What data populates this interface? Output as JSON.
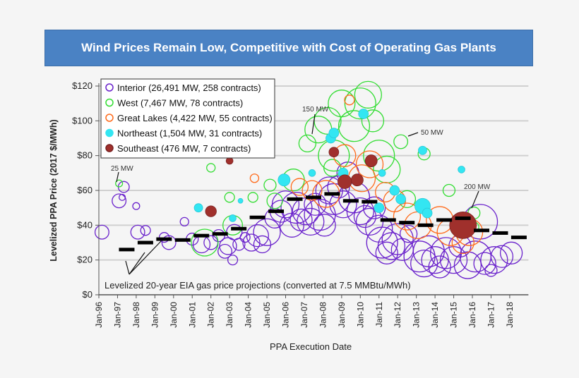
{
  "chart_data": {
    "type": "scatter",
    "title": "Wind Prices Remain Low, Competitive with Cost of Operating Gas Plants",
    "xlabel": "PPA Execution Date",
    "ylabel": "Levelized PPA Price (2017 $/MWh)",
    "ylim": [
      0,
      120
    ],
    "xlim": [
      "1996-01",
      "2019-01"
    ],
    "grid": true,
    "legend_placement": "top-left",
    "yticks": [
      "$0",
      "$20",
      "$40",
      "$60",
      "$80",
      "$100",
      "$120"
    ],
    "xticks": [
      "Jan-96",
      "Jan-97",
      "Jan-98",
      "Jan-99",
      "Jan-00",
      "Jan-01",
      "Jan-02",
      "Jan-03",
      "Jan-04",
      "Jan-05",
      "Jan-06",
      "Jan-07",
      "Jan-08",
      "Jan-09",
      "Jan-10",
      "Jan-11",
      "Jan-12",
      "Jan-13",
      "Jan-14",
      "Jan-15",
      "Jan-16",
      "Jan-17",
      "Jan-18"
    ],
    "bubble_size": "MW",
    "series": [
      {
        "name": "Interior (26,491 MW, 258 contracts)",
        "color": "#6a22cc",
        "filled": false,
        "points": [
          [
            "1996-03",
            36,
            40
          ],
          [
            "1997-02",
            54,
            40
          ],
          [
            "1997-05",
            62,
            25
          ],
          [
            "1997-04",
            56,
            8
          ],
          [
            "1998-01",
            51,
            10
          ],
          [
            "1998-02",
            36,
            40
          ],
          [
            "1998-07",
            37,
            20
          ],
          [
            "1999-07",
            33,
            20
          ],
          [
            "1999-10",
            30,
            40
          ],
          [
            "2000-08",
            42,
            15
          ],
          [
            "2001-01",
            32,
            30
          ],
          [
            "2001-07",
            29,
            60
          ],
          [
            "2002-01",
            30,
            40
          ],
          [
            "2002-06",
            34,
            30
          ],
          [
            "2002-10",
            25,
            40
          ],
          [
            "2002-12",
            28,
            60
          ],
          [
            "2003-03",
            20,
            20
          ],
          [
            "2003-04",
            36,
            50
          ],
          [
            "2003-07",
            29,
            30
          ],
          [
            "2003-11",
            33,
            20
          ],
          [
            "2004-03",
            30,
            60
          ],
          [
            "2004-07",
            34,
            100
          ],
          [
            "2004-10",
            29,
            60
          ],
          [
            "2005-01",
            36,
            150
          ],
          [
            "2005-06",
            44,
            80
          ],
          [
            "2005-10",
            48,
            100
          ],
          [
            "2006-01",
            52,
            150
          ],
          [
            "2006-05",
            40,
            120
          ],
          [
            "2006-08",
            50,
            200
          ],
          [
            "2006-11",
            43,
            100
          ],
          [
            "2007-02",
            48,
            150
          ],
          [
            "2007-05",
            42,
            150
          ],
          [
            "2007-08",
            52,
            100
          ],
          [
            "2007-11",
            46,
            200
          ],
          [
            "2008-02",
            40,
            100
          ],
          [
            "2008-05",
            60,
            150
          ],
          [
            "2008-08",
            55,
            200
          ],
          [
            "2008-11",
            62,
            100
          ],
          [
            "2009-02",
            52,
            150
          ],
          [
            "2009-05",
            70,
            100
          ],
          [
            "2009-09",
            56,
            200
          ],
          [
            "2010-01",
            48,
            150
          ],
          [
            "2010-04",
            45,
            100
          ],
          [
            "2010-07",
            42,
            150
          ],
          [
            "2010-10",
            50,
            100
          ],
          [
            "2011-01",
            38,
            150
          ],
          [
            "2011-03",
            30,
            200
          ],
          [
            "2011-06",
            24,
            100
          ],
          [
            "2011-09",
            28,
            150
          ],
          [
            "2012-01",
            32,
            200
          ],
          [
            "2012-04",
            26,
            100
          ],
          [
            "2012-08",
            35,
            60
          ],
          [
            "2013-03",
            22,
            200
          ],
          [
            "2013-06",
            18,
            150
          ],
          [
            "2013-09",
            25,
            200
          ],
          [
            "2014-01",
            20,
            150
          ],
          [
            "2014-04",
            16,
            100
          ],
          [
            "2014-08",
            24,
            200
          ],
          [
            "2015-01",
            20,
            150
          ],
          [
            "2015-05",
            28,
            100
          ],
          [
            "2015-10",
            17,
            150
          ],
          [
            "2016-03",
            22,
            200
          ],
          [
            "2016-06",
            42,
            250
          ],
          [
            "2016-09",
            18,
            100
          ],
          [
            "2017-01",
            14,
            30
          ],
          [
            "2017-03",
            20,
            150
          ],
          [
            "2017-08",
            22,
            100
          ],
          [
            "2018-02",
            24,
            100
          ]
        ]
      },
      {
        "name": "West (7,467 MW, 78 contracts)",
        "color": "#33dd33",
        "filled": false,
        "points": [
          [
            "1997-02",
            64,
            10
          ],
          [
            "2001-09",
            30,
            150
          ],
          [
            "2002-01",
            73,
            15
          ],
          [
            "2003-01",
            56,
            20
          ],
          [
            "2003-03",
            40,
            80
          ],
          [
            "2004-04",
            56,
            20
          ],
          [
            "2005-03",
            63,
            30
          ],
          [
            "2005-06",
            54,
            50
          ],
          [
            "2006-06",
            66,
            100
          ],
          [
            "2007-03",
            87,
            60
          ],
          [
            "2007-10",
            95,
            150
          ],
          [
            "2008-04",
            100,
            150
          ],
          [
            "2008-07",
            73,
            60
          ],
          [
            "2008-08",
            80,
            200
          ],
          [
            "2009-01",
            110,
            150
          ],
          [
            "2009-09",
            97,
            200
          ],
          [
            "2010-01",
            110,
            200
          ],
          [
            "2010-06",
            115,
            150
          ],
          [
            "2010-09",
            100,
            100
          ],
          [
            "2011-01",
            80,
            200
          ],
          [
            "2011-06",
            72,
            150
          ],
          [
            "2012-03",
            88,
            40
          ],
          [
            "2012-07",
            55,
            60
          ],
          [
            "2013-06",
            81,
            30
          ],
          [
            "2014-10",
            60,
            30
          ],
          [
            "2016-02",
            47,
            30
          ],
          [
            "2016-02",
            39,
            20
          ]
        ]
      },
      {
        "name": "Great Lakes (4,422 MW, 55 contracts)",
        "color": "#ff6a1a",
        "filled": false,
        "points": [
          [
            "2004-05",
            67,
            15
          ],
          [
            "2006-10",
            62,
            60
          ],
          [
            "2007-06",
            60,
            80
          ],
          [
            "2008-03",
            58,
            150
          ],
          [
            "2009-03",
            80,
            100
          ],
          [
            "2009-06",
            112,
            20
          ],
          [
            "2010-02",
            67,
            150
          ],
          [
            "2010-07",
            75,
            150
          ],
          [
            "2011-05",
            59,
            80
          ],
          [
            "2011-11",
            54,
            100
          ],
          [
            "2012-07",
            45,
            150
          ],
          [
            "2013-02",
            40,
            150
          ],
          [
            "2014-04",
            43,
            150
          ],
          [
            "2014-11",
            36,
            150
          ],
          [
            "2015-07",
            30,
            100
          ],
          [
            "2015-11",
            36,
            150
          ]
        ]
      },
      {
        "name": "Northeast (1,504 MW, 31 contracts)",
        "color": "#33e6f2",
        "filled": true,
        "points": [
          [
            "2001-05",
            50,
            15
          ],
          [
            "2003-03",
            44,
            10
          ],
          [
            "2003-08",
            54,
            5
          ],
          [
            "2005-12",
            66,
            30
          ],
          [
            "2007-06",
            70,
            10
          ],
          [
            "2008-06",
            90,
            20
          ],
          [
            "2008-08",
            93,
            20
          ],
          [
            "2009-02",
            70,
            20
          ],
          [
            "2010-03",
            104,
            20
          ],
          [
            "2011-01",
            50,
            20
          ],
          [
            "2011-03",
            70,
            10
          ],
          [
            "2011-11",
            60,
            20
          ],
          [
            "2012-03",
            55,
            20
          ],
          [
            "2013-05",
            51,
            50
          ],
          [
            "2013-08",
            47,
            20
          ],
          [
            "2013-05",
            83,
            15
          ],
          [
            "2015-06",
            72,
            10
          ]
        ]
      },
      {
        "name": "Southeast (476 MW, 7 contracts)",
        "color": "#a0302c",
        "filled": true,
        "points": [
          [
            "2002-01",
            48,
            25
          ],
          [
            "2003-01",
            77,
            10
          ],
          [
            "2008-08",
            82,
            20
          ],
          [
            "2009-03",
            65,
            40
          ],
          [
            "2009-11",
            66,
            30
          ],
          [
            "2010-08",
            77,
            30
          ],
          [
            "2015-07",
            40,
            150
          ]
        ]
      }
    ],
    "gas_price_projections": {
      "label": "Levelized 20-year EIA gas price projections (converted at 7.5 MMBtu/MWh)",
      "points": [
        [
          "1997-01",
          26
        ],
        [
          "1998-01",
          30
        ],
        [
          "1999-01",
          32
        ],
        [
          "2000-01",
          31.5
        ],
        [
          "2001-01",
          34
        ],
        [
          "2002-01",
          35
        ],
        [
          "2003-01",
          38
        ],
        [
          "2004-01",
          44.5
        ],
        [
          "2005-01",
          48
        ],
        [
          "2006-01",
          55
        ],
        [
          "2007-01",
          56
        ],
        [
          "2008-01",
          58
        ],
        [
          "2009-01",
          54
        ],
        [
          "2010-01",
          53.5
        ],
        [
          "2011-01",
          43
        ],
        [
          "2012-01",
          41.5
        ],
        [
          "2013-01",
          40
        ],
        [
          "2014-01",
          43
        ],
        [
          "2015-01",
          44
        ],
        [
          "2016-01",
          37
        ],
        [
          "2017-01",
          35.5
        ],
        [
          "2018-01",
          33
        ]
      ]
    },
    "annotations": [
      "25 MW",
      "150 MW",
      "50 MW",
      "200 MW"
    ]
  }
}
